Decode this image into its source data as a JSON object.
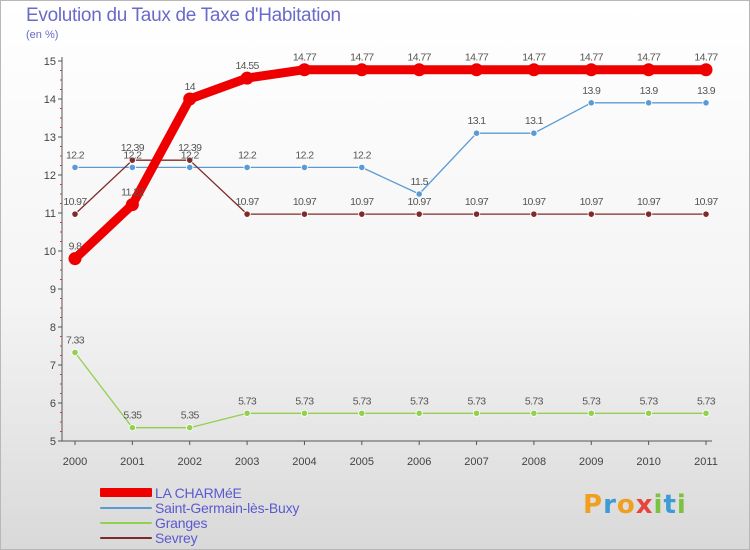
{
  "title": "Evolution du Taux de Taxe d'Habitation",
  "unit_label": "(en %)",
  "brand": {
    "text": "Proxiti",
    "letters": [
      {
        "ch": "P",
        "color": "#f0a020"
      },
      {
        "ch": "r",
        "color": "#3f9bd6"
      },
      {
        "ch": "o",
        "color": "#f0a020"
      },
      {
        "ch": "x",
        "color": "#e8433c"
      },
      {
        "ch": "i",
        "color": "#7cc242"
      },
      {
        "ch": "t",
        "color": "#3f9bd6"
      },
      {
        "ch": "i",
        "color": "#7cc242"
      }
    ]
  },
  "chart_data": {
    "type": "line",
    "x": [
      "2000",
      "2001",
      "2002",
      "2003",
      "2004",
      "2005",
      "2006",
      "2007",
      "2008",
      "2009",
      "2010",
      "2011"
    ],
    "ylim": [
      5,
      15
    ],
    "yticks": [
      5,
      6,
      7,
      8,
      9,
      10,
      11,
      12,
      13,
      14,
      15
    ],
    "grid": false,
    "legend_position": "bottom-left",
    "series": [
      {
        "name": "LA CHARMéE",
        "color": "#ee0000",
        "emphasis": true,
        "values": [
          9.8,
          11.22,
          14,
          14.55,
          14.77,
          14.77,
          14.77,
          14.77,
          14.77,
          14.77,
          14.77,
          14.77
        ],
        "labels": [
          "9.8",
          "11.22",
          "14",
          "14.55",
          "14.77",
          "14.77",
          "14.77",
          "14.77",
          "14.77",
          "14.77",
          "14.77",
          "14.77"
        ]
      },
      {
        "name": "Saint-Germain-lès-Buxy",
        "color": "#5b9bd5",
        "emphasis": false,
        "values": [
          12.2,
          12.2,
          12.2,
          12.2,
          12.2,
          12.2,
          11.5,
          13.1,
          13.1,
          13.9,
          13.9,
          13.9
        ],
        "labels": [
          "12.2",
          "12.2",
          "12.2",
          "12.2",
          "12.2",
          "12.2",
          "11.5",
          "13.1",
          "13.1",
          "13.9",
          "13.9",
          "13.9"
        ]
      },
      {
        "name": "Granges",
        "color": "#92d050",
        "emphasis": false,
        "values": [
          7.33,
          5.35,
          5.35,
          5.73,
          5.73,
          5.73,
          5.73,
          5.73,
          5.73,
          5.73,
          5.73,
          5.73
        ],
        "labels": [
          "7.33",
          "5.35",
          "5.35",
          "5.73",
          "5.73",
          "5.73",
          "5.73",
          "5.73",
          "5.73",
          "5.73",
          "5.73",
          "5.73"
        ]
      },
      {
        "name": "Sevrey",
        "color": "#7f2a2a",
        "emphasis": false,
        "values": [
          10.97,
          12.39,
          12.39,
          10.97,
          10.97,
          10.97,
          10.97,
          10.97,
          10.97,
          10.97,
          10.97,
          10.97
        ],
        "labels": [
          "10.97",
          "12.39",
          "12.39",
          "10.97",
          "10.97",
          "10.97",
          "10.97",
          "10.97",
          "10.97",
          "10.97",
          "10.97",
          "10.97"
        ]
      }
    ]
  }
}
